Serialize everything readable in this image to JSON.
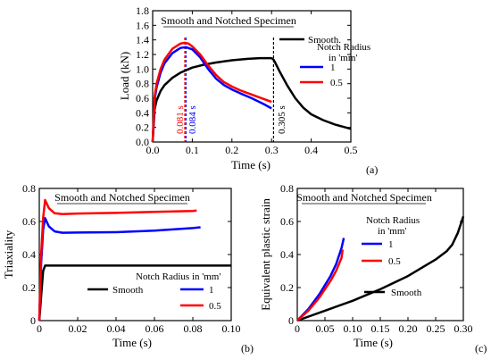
{
  "chart_data": [
    {
      "id": "a",
      "type": "line",
      "panel_label": "(a)",
      "title": "Smooth and Notched Specimen",
      "xlabel": "Time (s)",
      "ylabel": "Load (kN)",
      "xlim": [
        0,
        0.5
      ],
      "ylim": [
        0,
        1.8
      ],
      "xticks": [
        "0.0",
        "0.1",
        "0.2",
        "0.3",
        "0.4",
        "0.5"
      ],
      "yticks": [
        "0.0",
        "0.2",
        "0.4",
        "0.6",
        "0.8",
        "1.0",
        "1.2",
        "1.4",
        "1.6",
        "1.8"
      ],
      "legend_title": "Notch Radius\nin 'mm'",
      "series": [
        {
          "name": "Smooth.",
          "color": "#000000",
          "x": [
            0,
            0.005,
            0.01,
            0.02,
            0.03,
            0.05,
            0.07,
            0.1,
            0.13,
            0.16,
            0.2,
            0.24,
            0.27,
            0.29,
            0.3,
            0.305,
            0.31,
            0.32,
            0.34,
            0.36,
            0.38,
            0.4,
            0.43,
            0.46,
            0.5
          ],
          "y": [
            0,
            0.45,
            0.57,
            0.7,
            0.78,
            0.88,
            0.95,
            1.02,
            1.06,
            1.09,
            1.12,
            1.14,
            1.15,
            1.15,
            1.15,
            1.13,
            1.08,
            0.97,
            0.77,
            0.6,
            0.47,
            0.38,
            0.3,
            0.24,
            0.18
          ]
        },
        {
          "name": "1",
          "color": "#0000ff",
          "x": [
            0,
            0.005,
            0.01,
            0.02,
            0.03,
            0.05,
            0.07,
            0.084,
            0.1,
            0.12,
            0.14,
            0.16,
            0.18,
            0.2,
            0.22,
            0.25,
            0.28,
            0.3
          ],
          "y": [
            0,
            0.58,
            0.75,
            0.95,
            1.08,
            1.22,
            1.29,
            1.3,
            1.27,
            1.16,
            1.0,
            0.87,
            0.78,
            0.72,
            0.67,
            0.6,
            0.52,
            0.46
          ]
        },
        {
          "name": "0.5",
          "color": "#ff0000",
          "x": [
            0,
            0.005,
            0.01,
            0.02,
            0.03,
            0.05,
            0.07,
            0.081,
            0.09,
            0.1,
            0.12,
            0.14,
            0.16,
            0.18,
            0.2,
            0.22,
            0.25,
            0.28,
            0.3
          ],
          "y": [
            0,
            0.62,
            0.8,
            1.0,
            1.13,
            1.28,
            1.35,
            1.36,
            1.35,
            1.31,
            1.2,
            1.05,
            0.92,
            0.82,
            0.76,
            0.71,
            0.65,
            0.59,
            0.55
          ]
        }
      ],
      "vlines": [
        {
          "x": 0.081,
          "color": "#ff0000",
          "label": "0.081 s"
        },
        {
          "x": 0.084,
          "color": "#0000ff",
          "label": "0.084 s"
        },
        {
          "x": 0.305,
          "color": "#000000",
          "label": "0.305 s"
        }
      ]
    },
    {
      "id": "b",
      "type": "line",
      "panel_label": "(b)",
      "title": "Smooth and Notched Specimen",
      "xlabel": "Time (s)",
      "ylabel": "Triaxiality",
      "xlim": [
        0,
        0.1
      ],
      "ylim": [
        0,
        0.8
      ],
      "xticks": [
        "0",
        "0.02",
        "0.04",
        "0.06",
        "0.08",
        "0.10"
      ],
      "yticks": [
        "0",
        "0.2",
        "0.4",
        "0.6",
        "0.8"
      ],
      "legend_title": "Notch Radius in 'mm'",
      "series": [
        {
          "name": "Smooth",
          "color": "#000000",
          "x": [
            0,
            0.001,
            0.002,
            0.003,
            0.01,
            0.05,
            0.1
          ],
          "y": [
            0,
            0.15,
            0.3,
            0.333,
            0.333,
            0.333,
            0.333
          ]
        },
        {
          "name": "1",
          "color": "#0000ff",
          "x": [
            0,
            0.001,
            0.002,
            0.003,
            0.005,
            0.008,
            0.012,
            0.02,
            0.04,
            0.06,
            0.08,
            0.084
          ],
          "y": [
            0,
            0.35,
            0.55,
            0.62,
            0.57,
            0.54,
            0.532,
            0.533,
            0.535,
            0.545,
            0.56,
            0.565
          ]
        },
        {
          "name": "0.5",
          "color": "#ff0000",
          "x": [
            0,
            0.001,
            0.002,
            0.003,
            0.005,
            0.008,
            0.012,
            0.02,
            0.04,
            0.06,
            0.08,
            0.082
          ],
          "y": [
            0,
            0.4,
            0.62,
            0.73,
            0.68,
            0.65,
            0.645,
            0.648,
            0.652,
            0.658,
            0.664,
            0.666
          ]
        }
      ]
    },
    {
      "id": "c",
      "type": "line",
      "panel_label": "(c)",
      "title": "Smooth and Notched Specimen",
      "xlabel": "Time (s)",
      "ylabel": "Equivalent plastic strain",
      "xlim": [
        0,
        0.3
      ],
      "ylim": [
        0,
        0.8
      ],
      "xticks": [
        "0",
        "0.05",
        "0.10",
        "0.15",
        "0.20",
        "0.25",
        "0.30"
      ],
      "yticks": [
        "0",
        "0.2",
        "0.4",
        "0.6",
        "0.8"
      ],
      "legend_title": "Notch Radius\nin 'mm'",
      "series": [
        {
          "name": "Smooth",
          "color": "#000000",
          "x": [
            0,
            0.05,
            0.1,
            0.15,
            0.2,
            0.25,
            0.27,
            0.28,
            0.29,
            0.3
          ],
          "y": [
            0,
            0.06,
            0.12,
            0.19,
            0.27,
            0.37,
            0.42,
            0.46,
            0.53,
            0.63
          ]
        },
        {
          "name": "1",
          "color": "#0000ff",
          "x": [
            0,
            0.02,
            0.04,
            0.06,
            0.07,
            0.08,
            0.084
          ],
          "y": [
            0,
            0.07,
            0.16,
            0.27,
            0.34,
            0.44,
            0.5
          ]
        },
        {
          "name": "0.5",
          "color": "#ff0000",
          "x": [
            0,
            0.02,
            0.04,
            0.06,
            0.07,
            0.08,
            0.082
          ],
          "y": [
            0,
            0.06,
            0.14,
            0.24,
            0.3,
            0.38,
            0.43
          ]
        }
      ]
    }
  ]
}
